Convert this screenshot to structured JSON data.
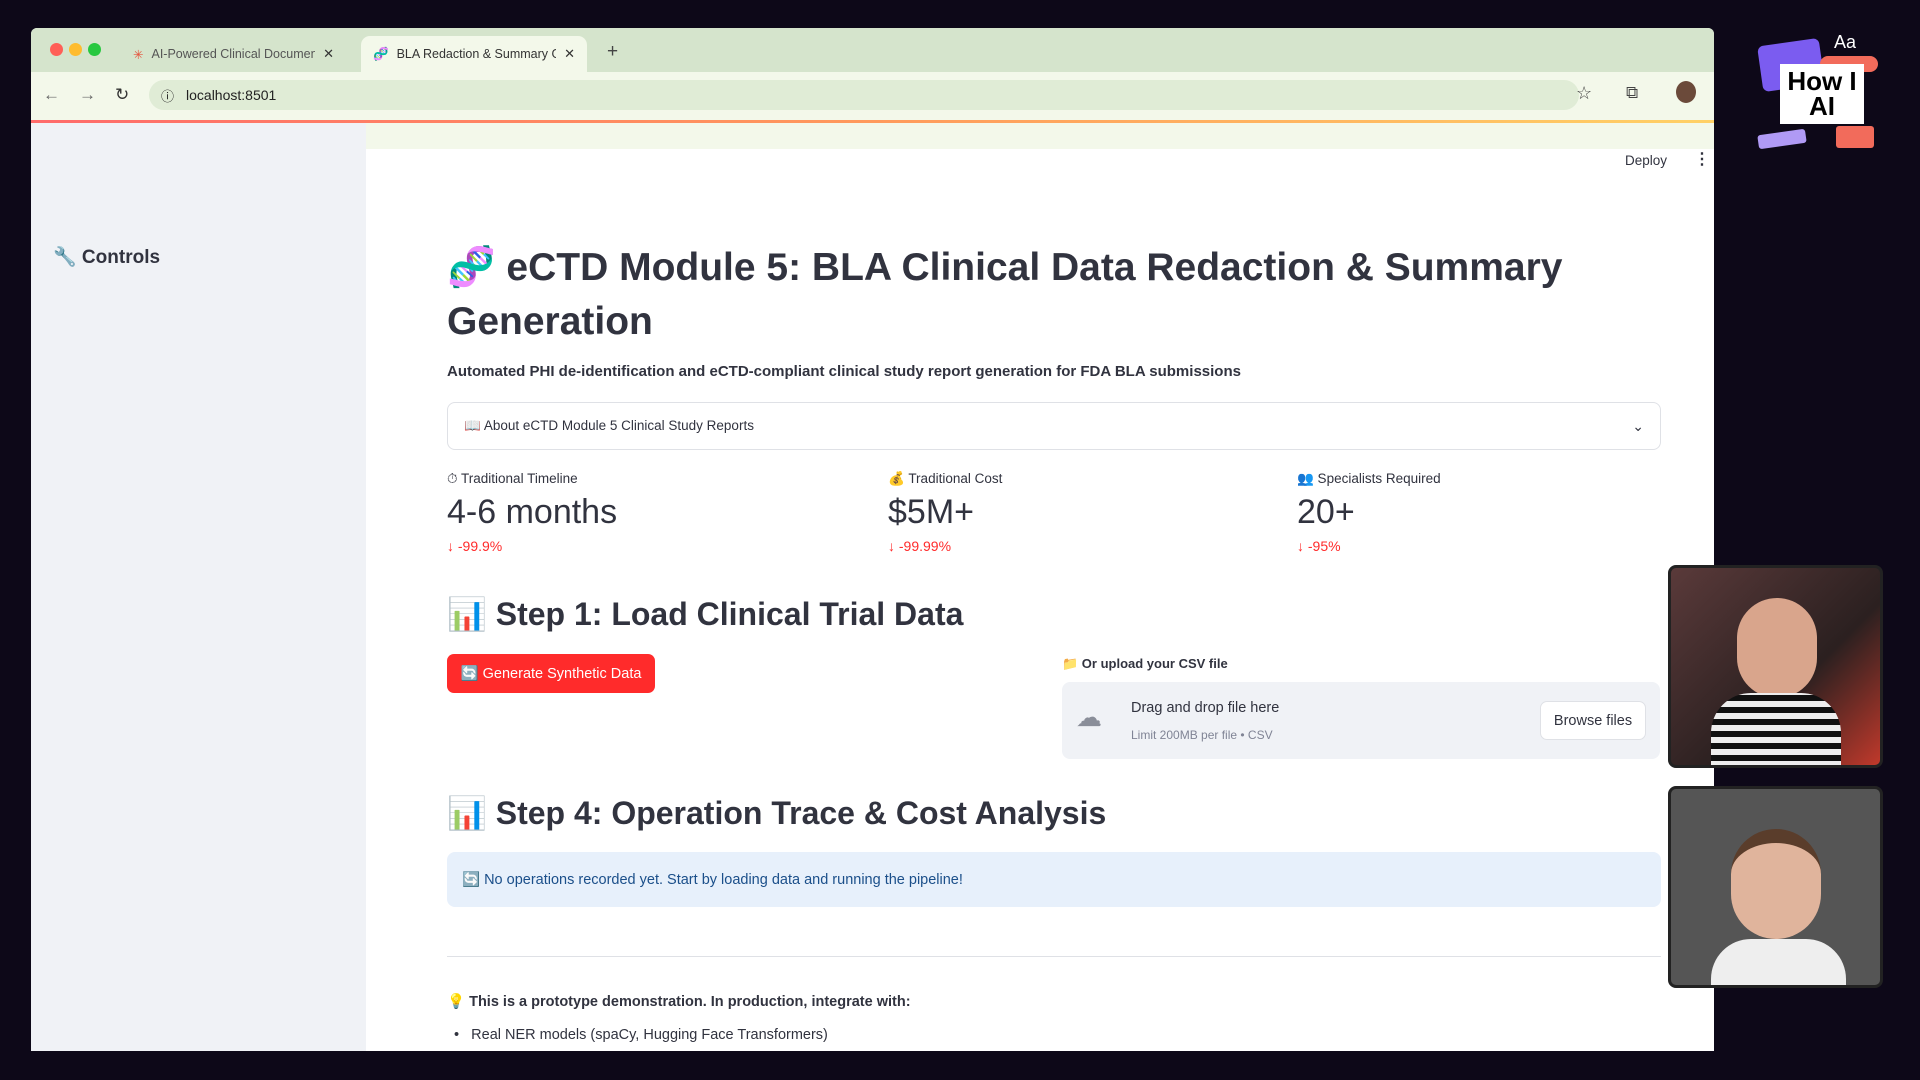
{
  "browser": {
    "tabs": [
      {
        "title": "AI-Powered Clinical Documen",
        "icon": "asterisk-icon",
        "active": false
      },
      {
        "title": "BLA Redaction & Summary G",
        "icon": "dna-icon",
        "active": true
      }
    ],
    "url": "localhost:8501"
  },
  "app": {
    "deploy_label": "Deploy",
    "sidebar": {
      "title": "🔧 Controls"
    },
    "title": "eCTD Module 5: BLA Clinical Data Redaction & Summary Generation",
    "title_icon": "🧬",
    "subtitle": "Automated PHI de-identification and eCTD-compliant clinical study report generation for FDA BLA submissions",
    "expander": {
      "label": "📖 About eCTD Module 5 Clinical Study Reports"
    },
    "metrics": [
      {
        "label": "⏱ Traditional Timeline",
        "value": "4-6 months",
        "delta": "-99.9%"
      },
      {
        "label": "💰 Traditional Cost",
        "value": "$5M+",
        "delta": "-99.99%"
      },
      {
        "label": "👥 Specialists Required",
        "value": "20+",
        "delta": "-95%"
      }
    ],
    "step1": {
      "heading": "📊 Step 1: Load Clinical Trial Data",
      "button": "🔄 Generate Synthetic Data",
      "upload_label": "📁 Or upload your CSV file",
      "drop_text": "Drag and drop file here",
      "drop_limit": "Limit 200MB per file • CSV",
      "browse": "Browse files"
    },
    "step4": {
      "heading": "📊 Step 4: Operation Trace & Cost Analysis",
      "info": "🔄 No operations recorded yet. Start by loading data and running the pipeline!"
    },
    "note": "💡 This is a prototype demonstration. In production, integrate with:",
    "list": [
      "Real NER models (spaCy, Hugging Face Transformers)"
    ]
  },
  "overlay": {
    "logo": "How I AI",
    "logo_aa": "Aa"
  },
  "colors": {
    "primary": "#ff2b2b",
    "sidebar": "#f0f2f6",
    "info_bg": "#e7f0fb",
    "info_text": "#1b4f8a"
  }
}
